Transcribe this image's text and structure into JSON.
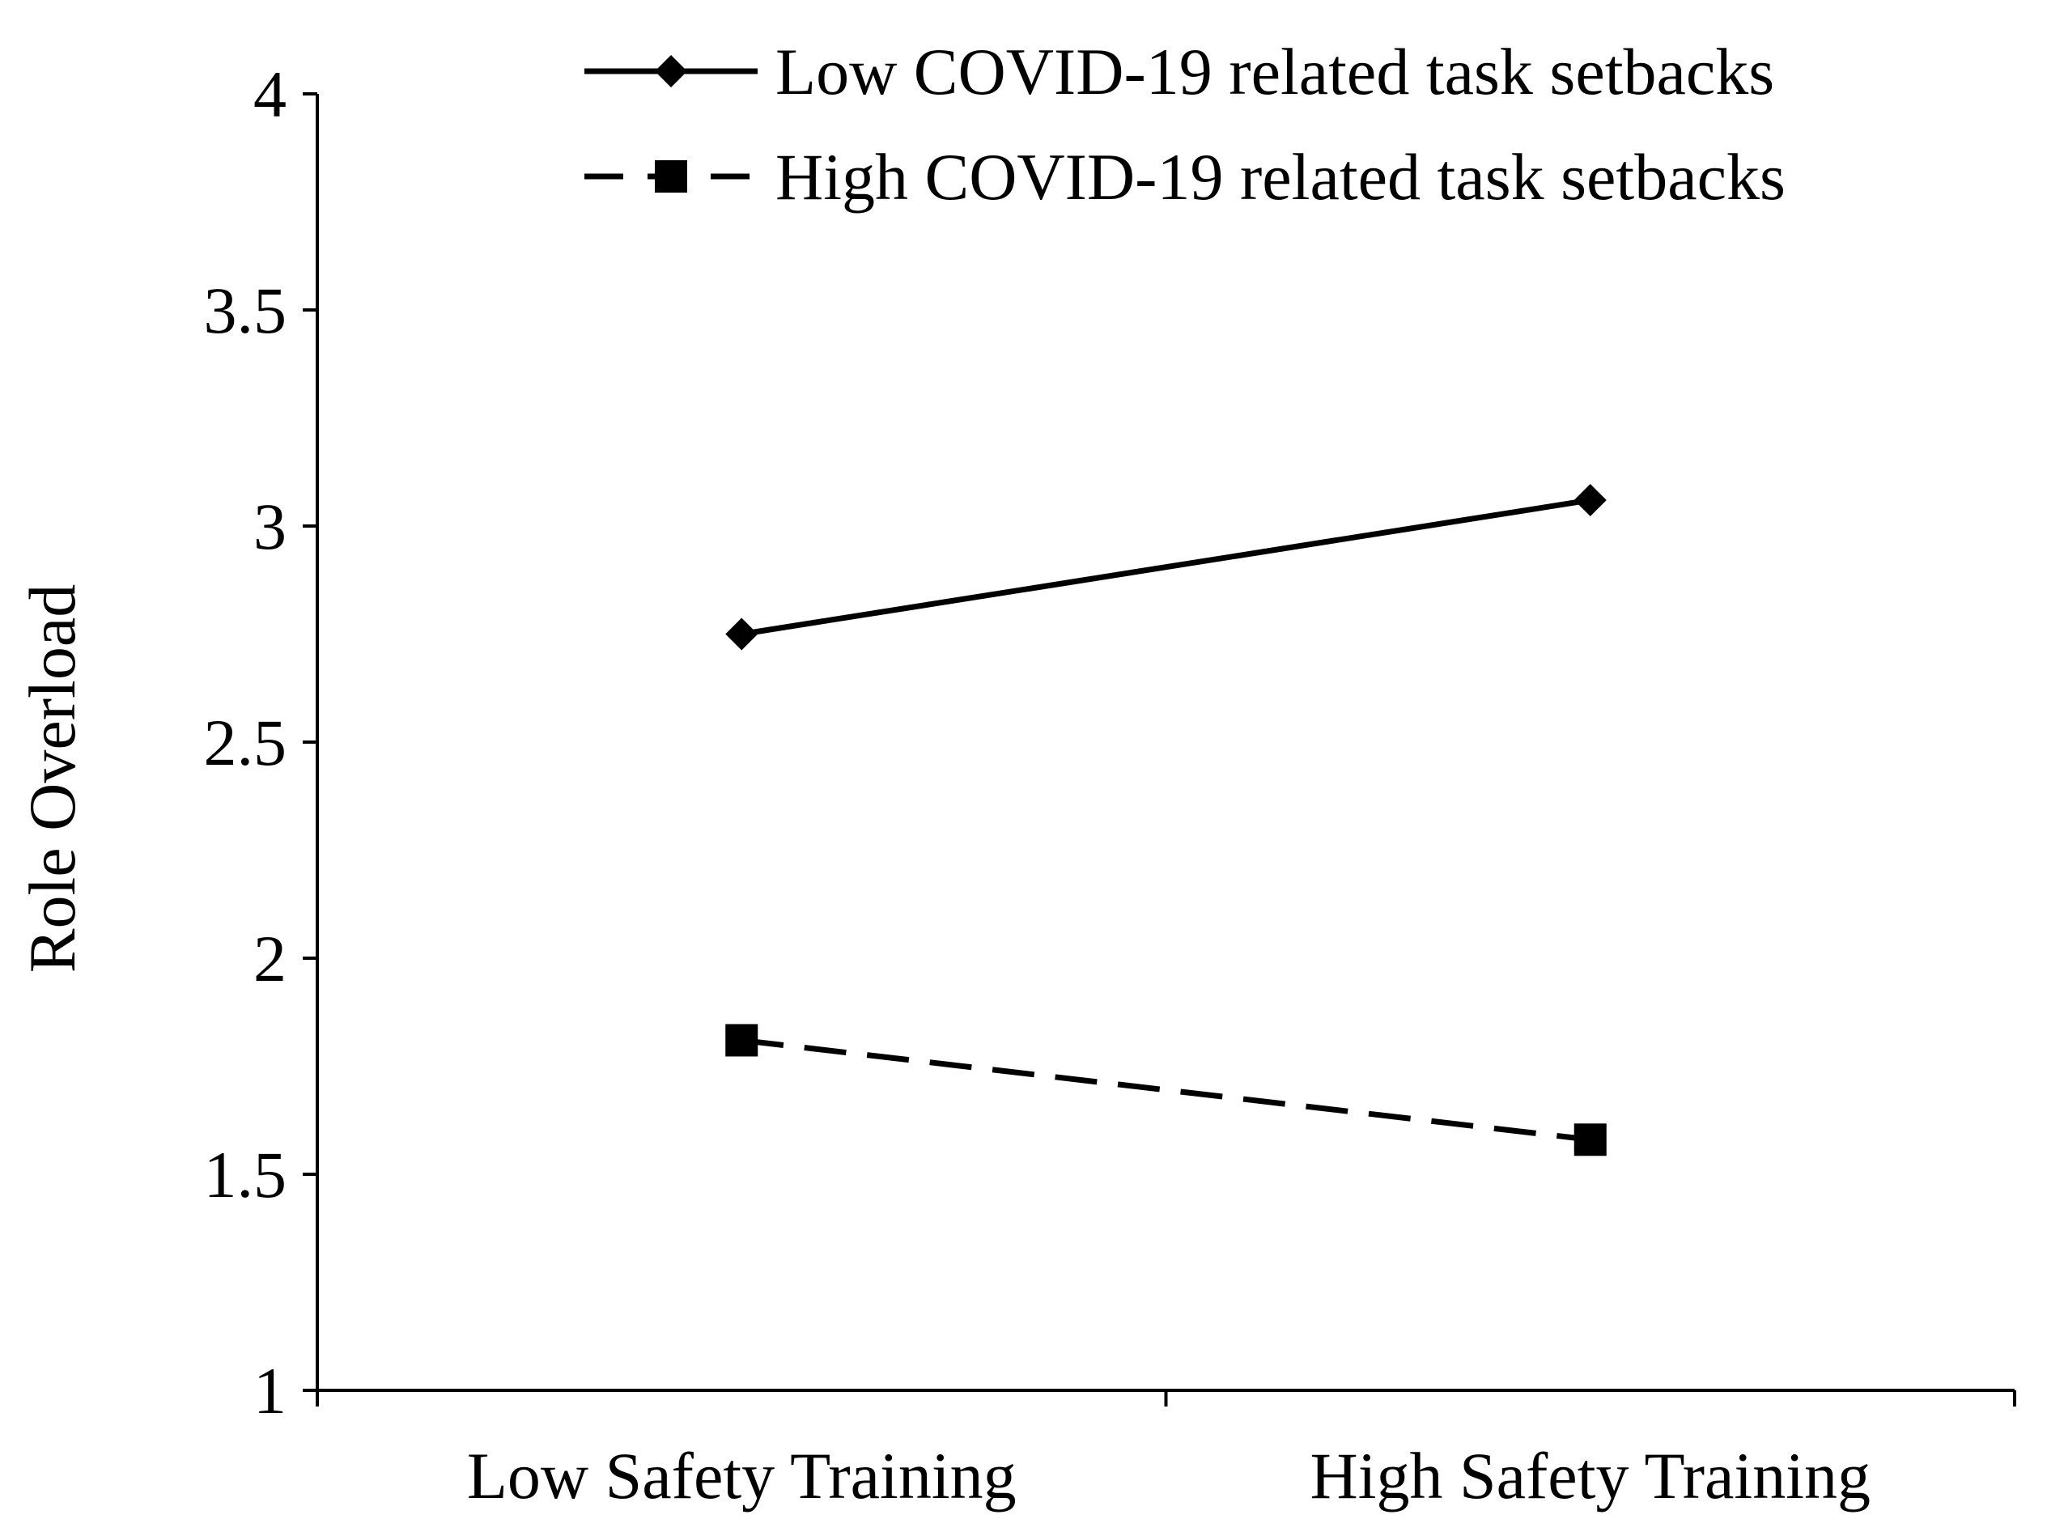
{
  "chart_data": {
    "type": "line",
    "title": "",
    "xlabel": "",
    "ylabel": "Role Overload",
    "categories": [
      "Low Safety Training",
      "High Safety Training"
    ],
    "ylim": [
      1,
      4
    ],
    "yticks": [
      "1",
      "1.5",
      "2",
      "2.5",
      "3",
      "3.5",
      "4"
    ],
    "grid": false,
    "legend_position": "top-right",
    "series": [
      {
        "name": "Low COVID-19 related task setbacks",
        "values": [
          2.75,
          3.06
        ],
        "line_style": "solid",
        "marker": "diamond",
        "color": "#000000"
      },
      {
        "name": "High COVID-19 related task setbacks",
        "values": [
          1.81,
          1.58
        ],
        "line_style": "dashed",
        "marker": "square",
        "color": "#000000"
      }
    ]
  }
}
